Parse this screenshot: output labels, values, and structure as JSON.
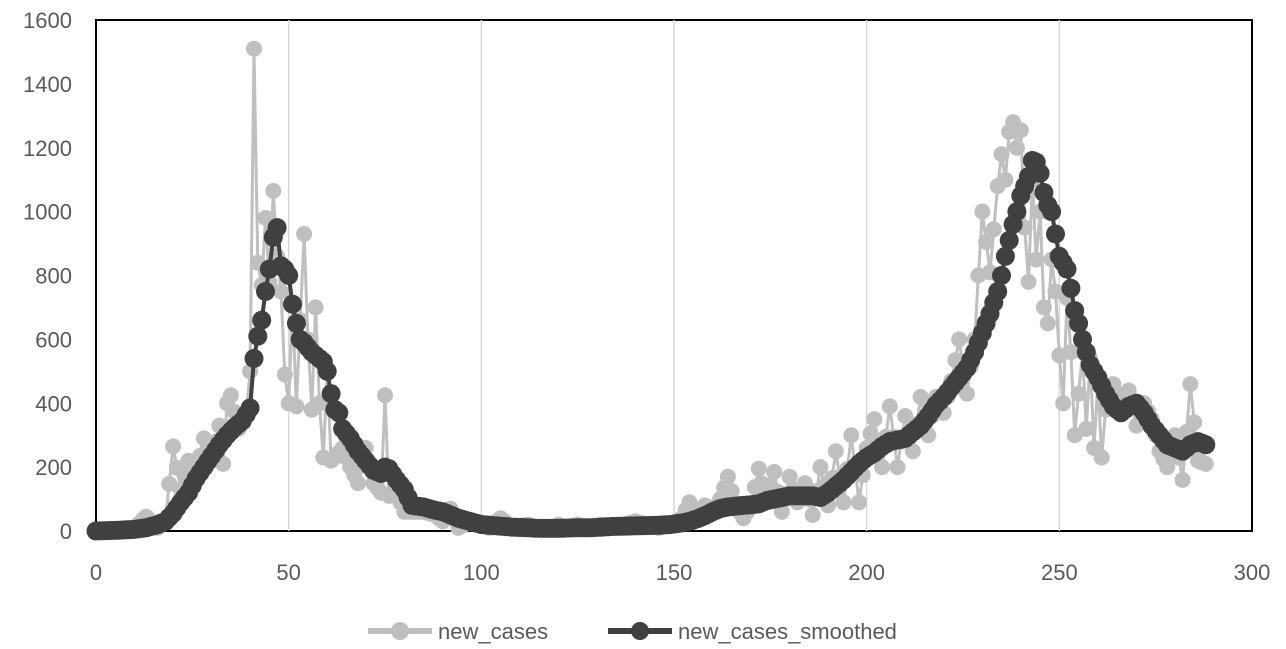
{
  "chart_data": {
    "type": "line",
    "title": "",
    "xlabel": "",
    "ylabel": "",
    "xlim": [
      0,
      300
    ],
    "ylim": [
      0,
      1600
    ],
    "x_ticks": [
      0,
      50,
      100,
      150,
      200,
      250,
      300
    ],
    "y_ticks": [
      0,
      200,
      400,
      600,
      800,
      1000,
      1200,
      1400,
      1600
    ],
    "x_tick_labels": [
      "0",
      "50",
      "100",
      "150",
      "200",
      "250",
      "300"
    ],
    "y_tick_labels": [
      "0",
      "200",
      "400",
      "600",
      "800",
      "1000",
      "1200",
      "1400",
      "1600"
    ],
    "grid": {
      "vertical": true,
      "horizontal": false
    },
    "legend": {
      "position": "bottom",
      "entries": [
        "new_cases",
        "new_cases_smoothed"
      ]
    },
    "series": [
      {
        "name": "new_cases",
        "color": "#bfbfbf",
        "marker": "circle",
        "anchors": [
          [
            0,
            0
          ],
          [
            5,
            3
          ],
          [
            10,
            10
          ],
          [
            13,
            45
          ],
          [
            16,
            10
          ],
          [
            18,
            30
          ],
          [
            20,
            265
          ],
          [
            22,
            130
          ],
          [
            24,
            220
          ],
          [
            26,
            180
          ],
          [
            28,
            290
          ],
          [
            30,
            230
          ],
          [
            32,
            330
          ],
          [
            33,
            210
          ],
          [
            34,
            400
          ],
          [
            35,
            425
          ],
          [
            37,
            320
          ],
          [
            39,
            370
          ],
          [
            40,
            500
          ],
          [
            41,
            1510
          ],
          [
            42,
            840
          ],
          [
            43,
            770
          ],
          [
            44,
            980
          ],
          [
            45,
            780
          ],
          [
            46,
            1065
          ],
          [
            47,
            860
          ],
          [
            48,
            750
          ],
          [
            49,
            490
          ],
          [
            50,
            400
          ],
          [
            51,
            710
          ],
          [
            52,
            390
          ],
          [
            54,
            930
          ],
          [
            55,
            600
          ],
          [
            56,
            380
          ],
          [
            57,
            700
          ],
          [
            58,
            400
          ],
          [
            59,
            230
          ],
          [
            60,
            500
          ],
          [
            61,
            220
          ],
          [
            62,
            230
          ],
          [
            64,
            260
          ],
          [
            66,
            200
          ],
          [
            68,
            150
          ],
          [
            70,
            260
          ],
          [
            72,
            150
          ],
          [
            74,
            120
          ],
          [
            75,
            425
          ],
          [
            76,
            110
          ],
          [
            78,
            120
          ],
          [
            80,
            60
          ],
          [
            82,
            60
          ],
          [
            85,
            60
          ],
          [
            88,
            50
          ],
          [
            90,
            30
          ],
          [
            92,
            70
          ],
          [
            94,
            10
          ],
          [
            97,
            30
          ],
          [
            100,
            20
          ],
          [
            102,
            10
          ],
          [
            105,
            40
          ],
          [
            108,
            10
          ],
          [
            112,
            20
          ],
          [
            115,
            10
          ],
          [
            118,
            5
          ],
          [
            120,
            20
          ],
          [
            122,
            10
          ],
          [
            125,
            20
          ],
          [
            128,
            10
          ],
          [
            131,
            20
          ],
          [
            134,
            15
          ],
          [
            137,
            20
          ],
          [
            140,
            30
          ],
          [
            143,
            20
          ],
          [
            146,
            10
          ],
          [
            149,
            20
          ],
          [
            152,
            40
          ],
          [
            154,
            90
          ],
          [
            156,
            50
          ],
          [
            158,
            80
          ],
          [
            160,
            60
          ],
          [
            162,
            100
          ],
          [
            164,
            170
          ],
          [
            166,
            80
          ],
          [
            168,
            40
          ],
          [
            170,
            80
          ],
          [
            172,
            195
          ],
          [
            174,
            100
          ],
          [
            176,
            185
          ],
          [
            178,
            60
          ],
          [
            180,
            170
          ],
          [
            182,
            90
          ],
          [
            184,
            150
          ],
          [
            186,
            50
          ],
          [
            188,
            200
          ],
          [
            190,
            80
          ],
          [
            192,
            250
          ],
          [
            194,
            90
          ],
          [
            196,
            300
          ],
          [
            198,
            90
          ],
          [
            200,
            260
          ],
          [
            202,
            350
          ],
          [
            204,
            200
          ],
          [
            206,
            390
          ],
          [
            208,
            200
          ],
          [
            210,
            360
          ],
          [
            212,
            250
          ],
          [
            214,
            420
          ],
          [
            216,
            300
          ],
          [
            218,
            420
          ],
          [
            220,
            370
          ],
          [
            222,
            470
          ],
          [
            224,
            600
          ],
          [
            226,
            430
          ],
          [
            228,
            600
          ],
          [
            230,
            1000
          ],
          [
            232,
            810
          ],
          [
            234,
            1080
          ],
          [
            235,
            1180
          ],
          [
            236,
            1100
          ],
          [
            237,
            1250
          ],
          [
            238,
            1280
          ],
          [
            239,
            1200
          ],
          [
            240,
            1255
          ],
          [
            241,
            950
          ],
          [
            242,
            780
          ],
          [
            243,
            1100
          ],
          [
            244,
            850
          ],
          [
            245,
            1000
          ],
          [
            246,
            700
          ],
          [
            247,
            650
          ],
          [
            248,
            850
          ],
          [
            249,
            750
          ],
          [
            250,
            550
          ],
          [
            251,
            400
          ],
          [
            252,
            730
          ],
          [
            253,
            560
          ],
          [
            254,
            300
          ],
          [
            255,
            430
          ],
          [
            256,
            560
          ],
          [
            257,
            320
          ],
          [
            258,
            540
          ],
          [
            259,
            260
          ],
          [
            260,
            470
          ],
          [
            261,
            230
          ],
          [
            262,
            380
          ],
          [
            264,
            460
          ],
          [
            266,
            400
          ],
          [
            268,
            440
          ],
          [
            270,
            330
          ],
          [
            272,
            400
          ],
          [
            274,
            350
          ],
          [
            276,
            250
          ],
          [
            278,
            200
          ],
          [
            280,
            300
          ],
          [
            282,
            160
          ],
          [
            284,
            460
          ],
          [
            286,
            220
          ],
          [
            288,
            210
          ]
        ]
      },
      {
        "name": "new_cases_smoothed",
        "color": "#404040",
        "marker": "circle",
        "anchors": [
          [
            0,
            0
          ],
          [
            5,
            2
          ],
          [
            10,
            5
          ],
          [
            13,
            10
          ],
          [
            16,
            20
          ],
          [
            18,
            30
          ],
          [
            20,
            55
          ],
          [
            22,
            90
          ],
          [
            24,
            120
          ],
          [
            26,
            165
          ],
          [
            28,
            200
          ],
          [
            30,
            235
          ],
          [
            32,
            270
          ],
          [
            34,
            300
          ],
          [
            36,
            325
          ],
          [
            38,
            345
          ],
          [
            40,
            385
          ],
          [
            41,
            540
          ],
          [
            42,
            610
          ],
          [
            43,
            660
          ],
          [
            44,
            750
          ],
          [
            45,
            820
          ],
          [
            46,
            920
          ],
          [
            47,
            950
          ],
          [
            48,
            830
          ],
          [
            49,
            820
          ],
          [
            50,
            800
          ],
          [
            51,
            710
          ],
          [
            52,
            650
          ],
          [
            53,
            600
          ],
          [
            54,
            590
          ],
          [
            56,
            560
          ],
          [
            57,
            550
          ],
          [
            58,
            540
          ],
          [
            59,
            530
          ],
          [
            60,
            500
          ],
          [
            61,
            430
          ],
          [
            62,
            380
          ],
          [
            63,
            370
          ],
          [
            64,
            320
          ],
          [
            66,
            290
          ],
          [
            68,
            250
          ],
          [
            70,
            220
          ],
          [
            72,
            190
          ],
          [
            74,
            180
          ],
          [
            75,
            200
          ],
          [
            76,
            195
          ],
          [
            78,
            160
          ],
          [
            80,
            130
          ],
          [
            82,
            80
          ],
          [
            85,
            75
          ],
          [
            88,
            65
          ],
          [
            90,
            60
          ],
          [
            92,
            50
          ],
          [
            94,
            40
          ],
          [
            97,
            30
          ],
          [
            100,
            20
          ],
          [
            102,
            18
          ],
          [
            105,
            15
          ],
          [
            108,
            12
          ],
          [
            112,
            10
          ],
          [
            115,
            8
          ],
          [
            118,
            8
          ],
          [
            120,
            8
          ],
          [
            122,
            9
          ],
          [
            125,
            10
          ],
          [
            128,
            10
          ],
          [
            131,
            12
          ],
          [
            134,
            14
          ],
          [
            137,
            15
          ],
          [
            140,
            16
          ],
          [
            143,
            17
          ],
          [
            146,
            18
          ],
          [
            149,
            20
          ],
          [
            152,
            25
          ],
          [
            154,
            30
          ],
          [
            156,
            38
          ],
          [
            158,
            48
          ],
          [
            160,
            60
          ],
          [
            162,
            70
          ],
          [
            164,
            75
          ],
          [
            166,
            78
          ],
          [
            168,
            80
          ],
          [
            170,
            82
          ],
          [
            172,
            85
          ],
          [
            174,
            95
          ],
          [
            176,
            100
          ],
          [
            178,
            105
          ],
          [
            180,
            110
          ],
          [
            182,
            110
          ],
          [
            184,
            110
          ],
          [
            186,
            110
          ],
          [
            188,
            105
          ],
          [
            190,
            120
          ],
          [
            192,
            140
          ],
          [
            194,
            160
          ],
          [
            196,
            185
          ],
          [
            198,
            210
          ],
          [
            200,
            230
          ],
          [
            202,
            245
          ],
          [
            204,
            265
          ],
          [
            206,
            280
          ],
          [
            208,
            285
          ],
          [
            210,
            290
          ],
          [
            212,
            310
          ],
          [
            214,
            330
          ],
          [
            216,
            360
          ],
          [
            218,
            395
          ],
          [
            220,
            420
          ],
          [
            222,
            450
          ],
          [
            224,
            480
          ],
          [
            226,
            510
          ],
          [
            228,
            560
          ],
          [
            230,
            620
          ],
          [
            232,
            680
          ],
          [
            234,
            750
          ],
          [
            235,
            800
          ],
          [
            236,
            860
          ],
          [
            237,
            910
          ],
          [
            238,
            960
          ],
          [
            239,
            1000
          ],
          [
            240,
            1050
          ],
          [
            241,
            1080
          ],
          [
            242,
            1110
          ],
          [
            243,
            1160
          ],
          [
            244,
            1155
          ],
          [
            245,
            1120
          ],
          [
            246,
            1060
          ],
          [
            247,
            1020
          ],
          [
            248,
            1000
          ],
          [
            249,
            930
          ],
          [
            250,
            860
          ],
          [
            251,
            840
          ],
          [
            252,
            820
          ],
          [
            253,
            760
          ],
          [
            254,
            690
          ],
          [
            255,
            650
          ],
          [
            256,
            600
          ],
          [
            257,
            560
          ],
          [
            258,
            520
          ],
          [
            259,
            500
          ],
          [
            260,
            480
          ],
          [
            262,
            430
          ],
          [
            264,
            390
          ],
          [
            266,
            370
          ],
          [
            268,
            390
          ],
          [
            270,
            400
          ],
          [
            272,
            370
          ],
          [
            274,
            330
          ],
          [
            276,
            300
          ],
          [
            278,
            270
          ],
          [
            280,
            260
          ],
          [
            282,
            250
          ],
          [
            284,
            270
          ],
          [
            286,
            280
          ],
          [
            288,
            270
          ]
        ]
      }
    ]
  }
}
